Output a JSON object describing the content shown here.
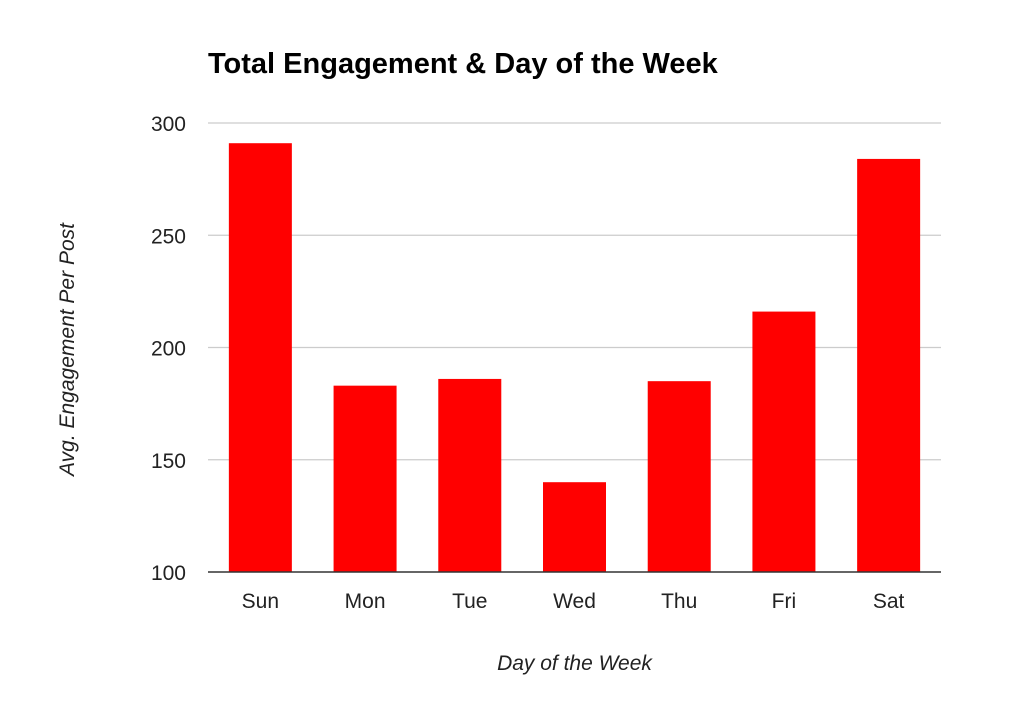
{
  "chart_data": {
    "type": "bar",
    "title": "Total Engagement & Day of the Week",
    "xlabel": "Day of the Week",
    "ylabel": "Avg. Engagement Per Post",
    "categories": [
      "Sun",
      "Mon",
      "Tue",
      "Wed",
      "Thu",
      "Fri",
      "Sat"
    ],
    "values": [
      291,
      183,
      186,
      140,
      185,
      216,
      284
    ],
    "ylim": [
      100,
      300
    ],
    "yticks": [
      100,
      150,
      200,
      250,
      300
    ],
    "ytick_labels": [
      "100",
      "150",
      "200",
      "250",
      "300"
    ],
    "grid": true,
    "legend": "none",
    "bar_color": "#ff0000",
    "grid_color": "#cccccc",
    "axis_color": "#333333"
  }
}
